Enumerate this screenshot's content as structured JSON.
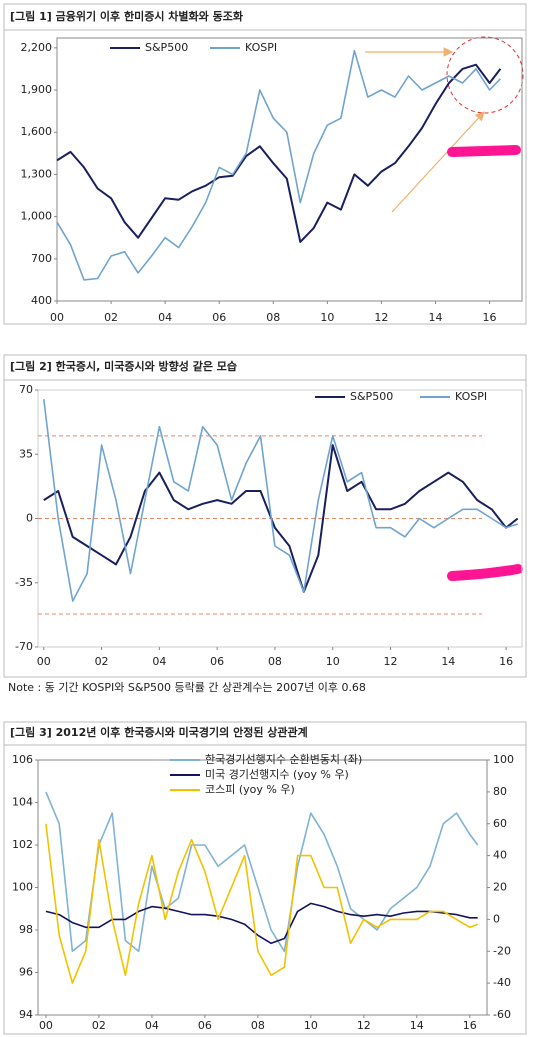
{
  "chart_data": [
    {
      "type": "line",
      "title": "[그림 1] 금융위기 이후 한미증시 차별화와 동조화",
      "x": [
        2000,
        2000.5,
        2001,
        2001.5,
        2002,
        2002.5,
        2003,
        2003.5,
        2004,
        2004.5,
        2005,
        2005.5,
        2006,
        2006.5,
        2007,
        2007.5,
        2008,
        2008.5,
        2009,
        2009.5,
        2010,
        2010.5,
        2011,
        2011.5,
        2012,
        2012.5,
        2013,
        2013.5,
        2014,
        2014.5,
        2015,
        2015.5,
        2016,
        2016.4
      ],
      "xlim": [
        2000,
        2017.2
      ],
      "xticks": [
        {
          "value": 2000,
          "label": "00"
        },
        {
          "value": 2002,
          "label": "02"
        },
        {
          "value": 2004,
          "label": "04"
        },
        {
          "value": 2006,
          "label": "06"
        },
        {
          "value": 2008,
          "label": "08"
        },
        {
          "value": 2010,
          "label": "10"
        },
        {
          "value": 2012,
          "label": "12"
        },
        {
          "value": 2014,
          "label": "14"
        },
        {
          "value": 2016,
          "label": "16"
        }
      ],
      "ylim": [
        400,
        2270
      ],
      "yticks": [
        400,
        700,
        {
          "value": 1000,
          "label": "1,000"
        },
        {
          "value": 1300,
          "label": "1,300"
        },
        {
          "value": 1600,
          "label": "1,600"
        },
        {
          "value": 1900,
          "label": "1,900"
        },
        {
          "value": 2200,
          "label": "2,200"
        }
      ],
      "series": [
        {
          "name": "S&P500",
          "color": "#1a1f5e",
          "values": [
            1400,
            1460,
            1350,
            1200,
            1130,
            960,
            850,
            990,
            1130,
            1120,
            1180,
            1220,
            1280,
            1290,
            1430,
            1500,
            1380,
            1270,
            820,
            920,
            1100,
            1050,
            1300,
            1220,
            1320,
            1380,
            1500,
            1630,
            1800,
            1950,
            2050,
            2080,
            1950,
            2050
          ]
        },
        {
          "name": "KOSPI",
          "color": "#6fa3d0",
          "values": [
            960,
            800,
            550,
            560,
            720,
            750,
            600,
            720,
            850,
            780,
            930,
            1100,
            1350,
            1300,
            1450,
            1900,
            1700,
            1600,
            1100,
            1450,
            1650,
            1700,
            2180,
            1850,
            1900,
            1850,
            2000,
            1900,
            1950,
            2000,
            1950,
            2050,
            1900,
            1980
          ]
        }
      ]
    },
    {
      "type": "line",
      "title": "[그림 2] 한국증시, 미국증시와 방향성 같은 모습",
      "note": "Note : 동 기간 KOSPI와 S&P500 등락률 간 상관계수는 2007년 이후 0.68",
      "x": [
        2000,
        2000.5,
        2001,
        2001.5,
        2002,
        2002.5,
        2003,
        2003.5,
        2004,
        2004.5,
        2005,
        2005.5,
        2006,
        2006.5,
        2007,
        2007.5,
        2008,
        2008.5,
        2009,
        2009.5,
        2010,
        2010.5,
        2011,
        2011.5,
        2012,
        2012.5,
        2013,
        2013.5,
        2014,
        2014.5,
        2015,
        2015.5,
        2016,
        2016.4
      ],
      "xlim": [
        1999.8,
        2016.55
      ],
      "xticks": [
        {
          "value": 2000,
          "label": "00"
        },
        {
          "value": 2002,
          "label": "02"
        },
        {
          "value": 2004,
          "label": "04"
        },
        {
          "value": 2006,
          "label": "06"
        },
        {
          "value": 2008,
          "label": "08"
        },
        {
          "value": 2010,
          "label": "10"
        },
        {
          "value": 2012,
          "label": "12"
        },
        {
          "value": 2014,
          "label": "14"
        },
        {
          "value": 2016,
          "label": "16"
        }
      ],
      "ylim": [
        -70,
        70
      ],
      "yticks": [
        -70,
        -35,
        0,
        35,
        70
      ],
      "hlines": [
        45,
        0,
        -52
      ],
      "hline_color": "#e8896a",
      "series": [
        {
          "name": "S&P500",
          "color": "#1a1f5e",
          "values": [
            10,
            15,
            -10,
            -15,
            -20,
            -25,
            -10,
            15,
            25,
            10,
            5,
            8,
            10,
            8,
            15,
            15,
            -5,
            -15,
            -40,
            -20,
            40,
            15,
            20,
            5,
            5,
            8,
            15,
            20,
            25,
            20,
            10,
            5,
            -5,
            0
          ]
        },
        {
          "name": "KOSPI",
          "color": "#6fa3d0",
          "values": [
            65,
            0,
            -45,
            -30,
            40,
            10,
            -30,
            10,
            50,
            20,
            15,
            50,
            40,
            10,
            30,
            45,
            -15,
            -20,
            -40,
            10,
            45,
            20,
            25,
            -5,
            -5,
            -10,
            0,
            -5,
            0,
            5,
            5,
            0,
            -5,
            -3
          ]
        }
      ]
    },
    {
      "type": "line",
      "title": "[그림 3] 2012년 이후 한국증시와 미국경기의 안정된 상관관계",
      "x": [
        2000,
        2000.5,
        2001,
        2001.5,
        2002,
        2002.5,
        2003,
        2003.5,
        2004,
        2004.5,
        2005,
        2005.5,
        2006,
        2006.5,
        2007,
        2007.5,
        2008,
        2008.5,
        2009,
        2009.5,
        2010,
        2010.5,
        2011,
        2011.5,
        2012,
        2012.5,
        2013,
        2013.5,
        2014,
        2014.5,
        2015,
        2015.5,
        2016,
        2016.3
      ],
      "xlim": [
        1999.7,
        2016.65
      ],
      "xticks": [
        {
          "value": 2000,
          "label": "00"
        },
        {
          "value": 2002,
          "label": "02"
        },
        {
          "value": 2004,
          "label": "04"
        },
        {
          "value": 2006,
          "label": "06"
        },
        {
          "value": 2008,
          "label": "08"
        },
        {
          "value": 2010,
          "label": "10"
        },
        {
          "value": 2012,
          "label": "12"
        },
        {
          "value": 2014,
          "label": "14"
        },
        {
          "value": 2016,
          "label": "16"
        }
      ],
      "ylim": [
        94,
        106
      ],
      "yticks": [
        94,
        96,
        98,
        100,
        102,
        104,
        106
      ],
      "y2lim": [
        -60,
        100
      ],
      "y2ticks": [
        -60,
        -40,
        -20,
        0,
        20,
        40,
        60,
        80,
        100
      ],
      "series": [
        {
          "name": "한국경기선행지수 순환변동치 (좌)",
          "color": "#7fb3d5",
          "values": [
            104.5,
            103,
            97,
            97.5,
            102,
            103.5,
            97.5,
            97,
            101,
            99,
            99.5,
            102,
            102,
            101,
            101.5,
            102,
            100,
            98,
            97,
            101,
            103.5,
            102.5,
            101,
            99,
            98.5,
            98,
            99,
            99.5,
            100,
            101,
            103,
            103.5,
            102.5,
            102
          ]
        },
        {
          "name": "미국 경기선행지수 (yoy % 우)",
          "color": "#13135e",
          "axis": "y2",
          "values": [
            5,
            3,
            -2,
            -5,
            -5,
            0,
            0,
            5,
            8,
            7,
            5,
            3,
            3,
            2,
            0,
            -3,
            -10,
            -15,
            -12,
            5,
            10,
            8,
            5,
            3,
            2,
            3,
            2,
            4,
            5,
            5,
            4,
            3,
            1,
            1
          ]
        },
        {
          "name": "코스피 (yoy % 우)",
          "color": "#f2c200",
          "axis": "y2",
          "values": [
            60,
            -10,
            -40,
            -20,
            50,
            0,
            -35,
            10,
            40,
            0,
            30,
            50,
            30,
            0,
            20,
            40,
            -20,
            -35,
            -30,
            40,
            40,
            20,
            20,
            -15,
            0,
            -5,
            0,
            0,
            0,
            5,
            5,
            0,
            -5,
            -3
          ]
        }
      ]
    }
  ]
}
